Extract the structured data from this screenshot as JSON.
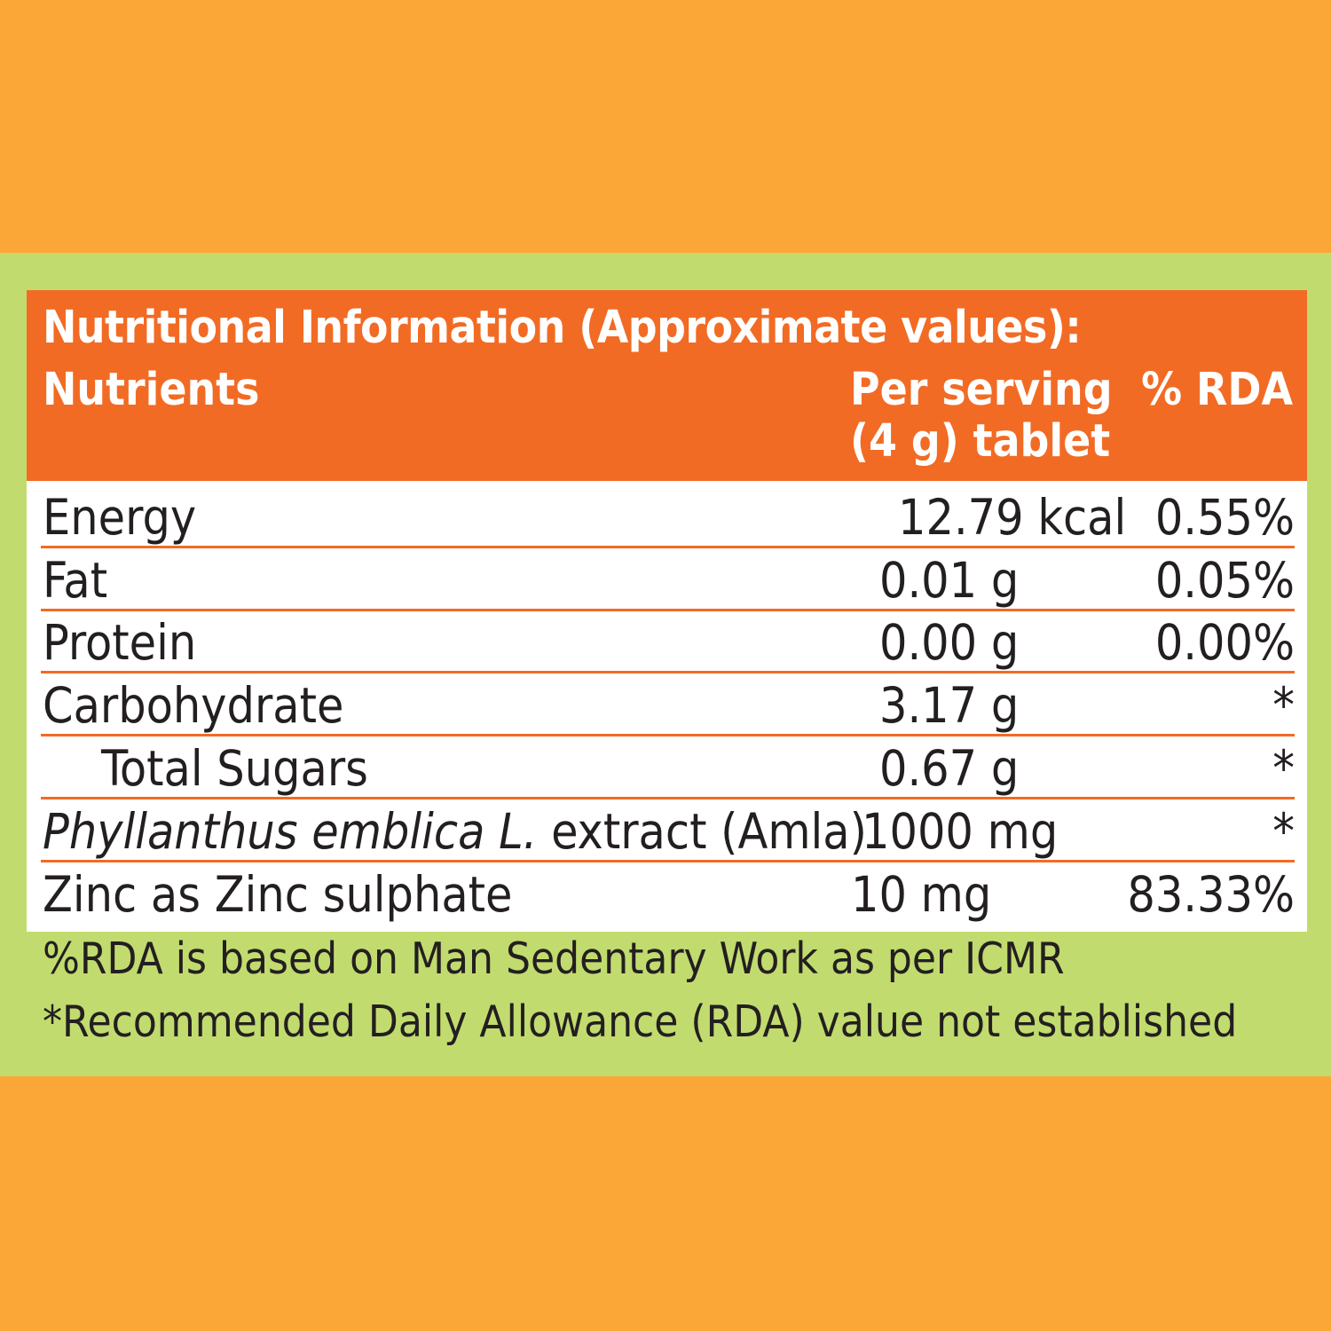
{
  "panel": {
    "title": "Nutritional Information (Approximate values):",
    "headers": {
      "nutrients": "Nutrients",
      "per_serving_line1": "Per serving",
      "per_serving_line2": "(4 g) tablet",
      "rda": "% RDA"
    }
  },
  "rows": [
    {
      "nutrient": "Energy",
      "amount": "12.79 kcal",
      "rda": "0.55%"
    },
    {
      "nutrient": "Fat",
      "amount": "0.01 g",
      "rda": "0.05%"
    },
    {
      "nutrient": "Protein",
      "amount": "0.00 g",
      "rda": "0.00%"
    },
    {
      "nutrient": "Carbohydrate",
      "amount": "3.17 g",
      "rda": "*"
    },
    {
      "nutrient": "Total Sugars",
      "amount": "0.67 g",
      "rda": "*"
    },
    {
      "nutrient_italic": "Phyllanthus emblica L.",
      "nutrient_rest": " extract (Amla)",
      "amount": "1000 mg",
      "rda": "*"
    },
    {
      "nutrient": "Zinc as Zinc sulphate",
      "amount": "10 mg",
      "rda": "83.33%"
    }
  ],
  "footnotes": {
    "rda_basis": "%RDA is based on Man Sedentary Work as per ICMR",
    "not_established": "*Recommended Daily Allowance (RDA) value not established"
  },
  "colors": {
    "outer_background": "#fba737",
    "band": "#c2db6f",
    "header": "#f26b24",
    "rule": "#f26b24",
    "text": "#231f20"
  }
}
